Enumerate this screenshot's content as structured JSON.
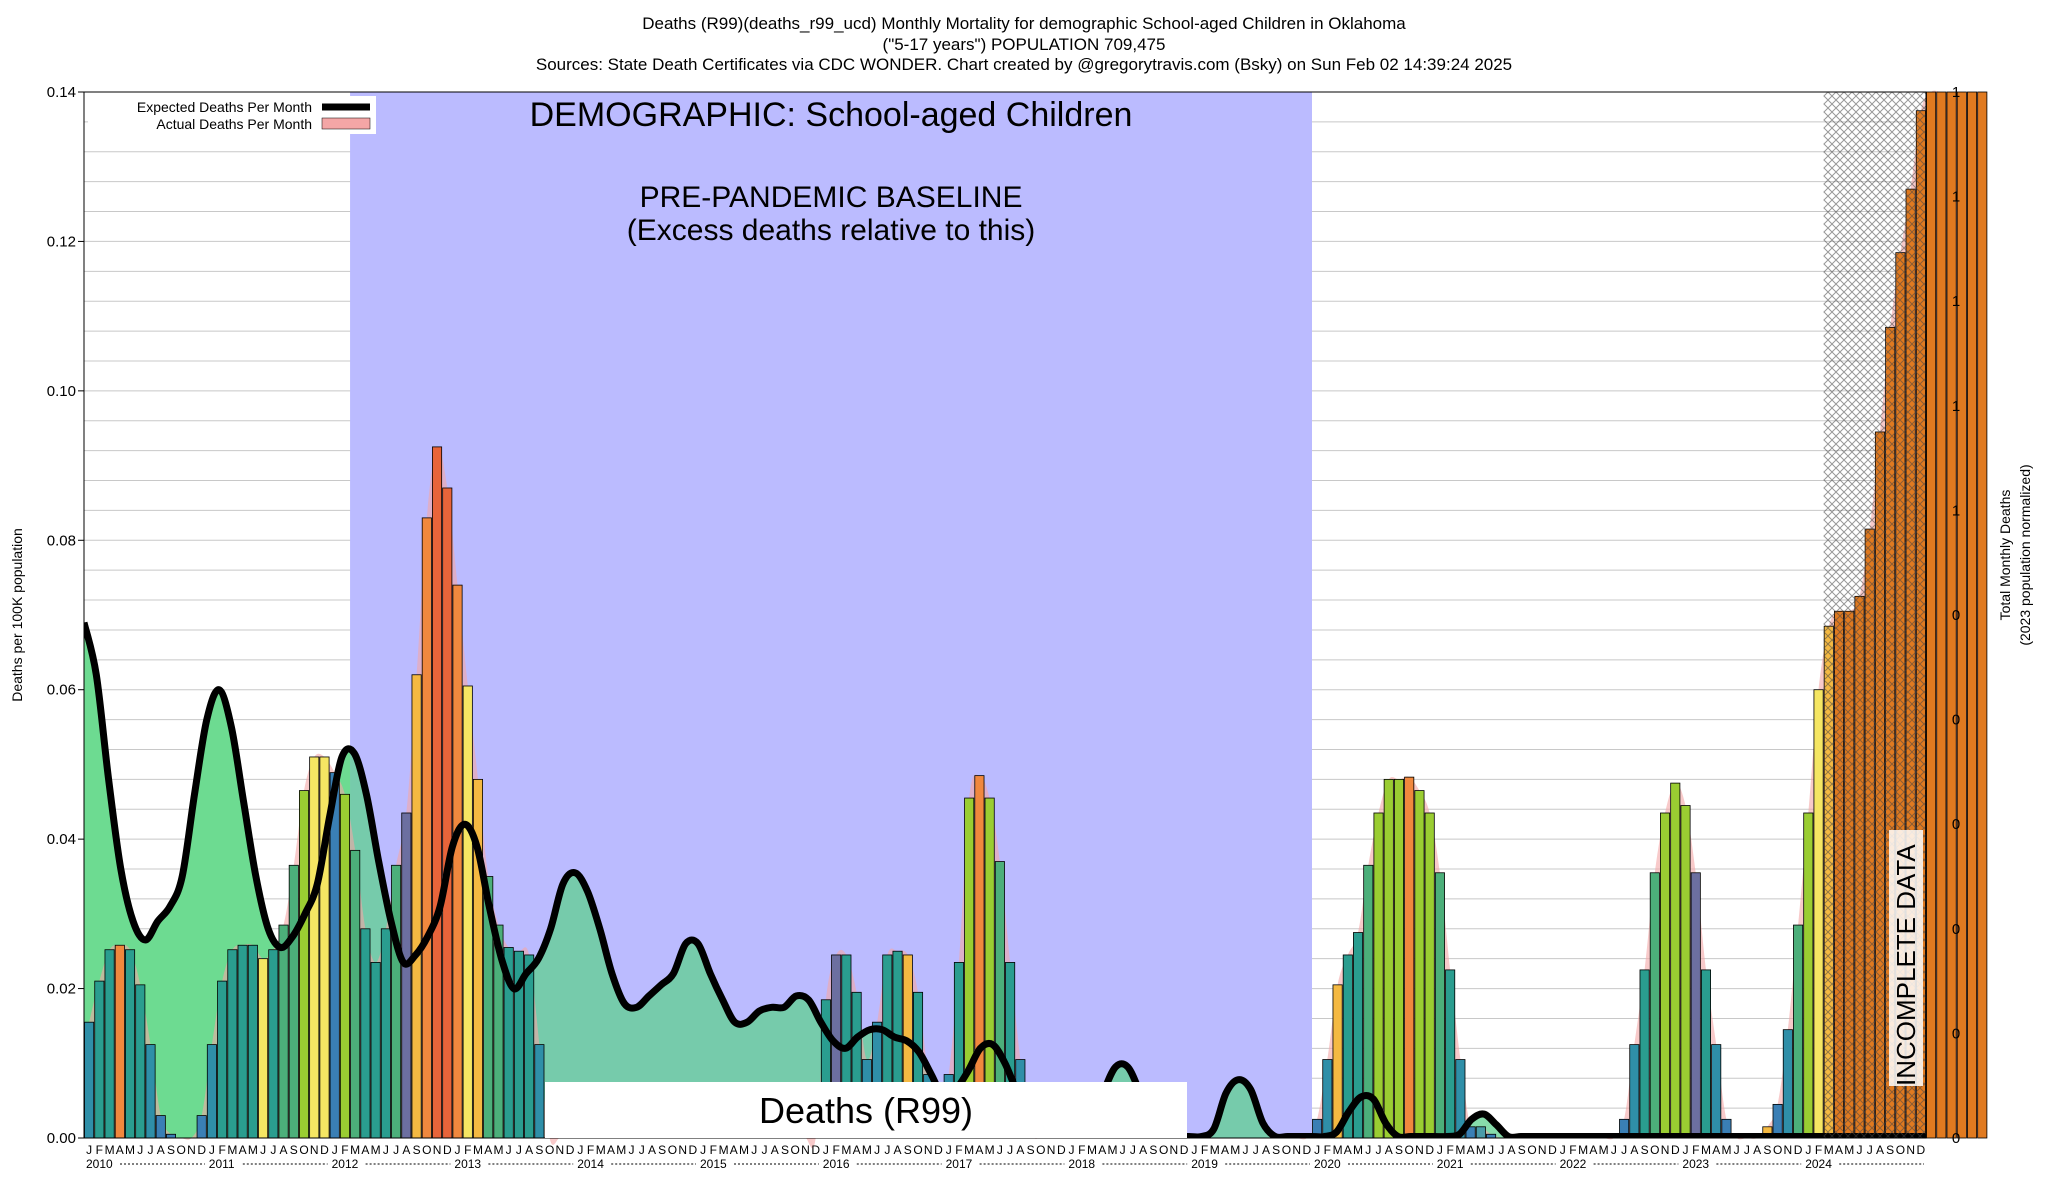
{
  "header": {
    "line1": "Deaths (R99)(deaths_r99_ucd) Monthly Mortality for demographic School-aged Children in Oklahoma",
    "line2": "(\"5-17 years\") POPULATION 709,475",
    "line3": "Sources: State Death Certificates via CDC WONDER.              Chart created by @gregorytravis.com (Bsky) on Sun Feb 02 14:39:24 2025"
  },
  "chart_data": {
    "type": "bar",
    "ylabel": "Deaths per 100K population",
    "y2label_line1": "Total Monthly Deaths",
    "y2label_line2": "(2023 population normalized)",
    "ylim": [
      0,
      0.14
    ],
    "yticks": [
      "0.00",
      "0.02",
      "0.04",
      "0.06",
      "0.08",
      "0.10",
      "0.12",
      "0.14"
    ],
    "y2ticks": [
      "0",
      "0",
      "0",
      "0",
      "0",
      "0",
      "1",
      "1",
      "1",
      "1",
      "1"
    ],
    "grid": true,
    "legend_position": "top-left",
    "legend": {
      "expected": "Expected Deaths Per Month",
      "actual": "Actual Deaths Per Month"
    },
    "month_letters": [
      "J",
      "F",
      "M",
      "A",
      "M",
      "J",
      "J",
      "A",
      "S",
      "O",
      "N",
      "D"
    ],
    "years": [
      "2010",
      "2011",
      "2012",
      "2013",
      "2014",
      "2015",
      "2016",
      "2017",
      "2018",
      "2019",
      "2020",
      "2021",
      "2022",
      "2023",
      "2024"
    ],
    "start": "2010-01",
    "actual": [
      0.0155,
      0.021,
      0.0252,
      0.0258,
      0.0252,
      0.0205,
      0.0125,
      0.003,
      0.0005,
      0,
      0,
      0.003,
      0.0125,
      0.021,
      0.0252,
      0.0258,
      0.0258,
      0.024,
      0.0252,
      0.0285,
      0.0365,
      0.0465,
      0.051,
      0.051,
      0.0489,
      0.046,
      0.0385,
      0.028,
      0.0235,
      0.028,
      0.0365,
      0.0435,
      0.062,
      0.083,
      0.0925,
      0.087,
      0.074,
      0.0605,
      0.048,
      0.035,
      0.0285,
      0.0255,
      0.025,
      0.0245,
      0.0125,
      0,
      0,
      0,
      0,
      0,
      0,
      0,
      0,
      0,
      0,
      0,
      0,
      0,
      0,
      0,
      0,
      0,
      0,
      0,
      0,
      0,
      0,
      0,
      0,
      0,
      0,
      0,
      0.0185,
      0.0245,
      0.0245,
      0.0195,
      0.0105,
      0.0155,
      0.0245,
      0.025,
      0.0245,
      0.0195,
      0.0085,
      0.0015,
      0.0085,
      0.0235,
      0.0455,
      0.0485,
      0.0455,
      0.037,
      0.0235,
      0.0105,
      0.001,
      0,
      0,
      0,
      0,
      0,
      0,
      0,
      0,
      0,
      0,
      0,
      0,
      0,
      0,
      0,
      0,
      0,
      0,
      0,
      0,
      0,
      0,
      0,
      0,
      0,
      0,
      0,
      0.0025,
      0.0105,
      0.0205,
      0.0245,
      0.0275,
      0.0365,
      0.0435,
      0.048,
      0.048,
      0.0483,
      0.0465,
      0.0435,
      0.0355,
      0.0225,
      0.0105,
      0.0015,
      0.0015,
      0.0005,
      0,
      0,
      0,
      0,
      0,
      0,
      0,
      0,
      0,
      0,
      0,
      0,
      0.0025,
      0.0125,
      0.0225,
      0.0355,
      0.0435,
      0.0475,
      0.0445,
      0.0355,
      0.0225,
      0.0125,
      0.0025,
      0,
      0,
      0,
      0.0015,
      0.0045,
      0.0145,
      0.0285,
      0.0435,
      0.06,
      0.0685,
      0.0705,
      0.0705,
      0.0725,
      0.0815,
      0.0945,
      0.1085,
      0.1185,
      0.127,
      0.1375,
      0.14,
      0.14,
      0.14,
      0.14,
      0.14,
      0.14
    ],
    "expected": [
      [
        2010.0,
        0.069
      ],
      [
        2010.1,
        0.062
      ],
      [
        2010.2,
        0.048
      ],
      [
        2010.3,
        0.036
      ],
      [
        2010.4,
        0.029
      ],
      [
        2010.5,
        0.0265
      ],
      [
        2010.6,
        0.029
      ],
      [
        2010.7,
        0.031
      ],
      [
        2010.8,
        0.035
      ],
      [
        2010.9,
        0.046
      ],
      [
        2011.0,
        0.056
      ],
      [
        2011.1,
        0.06
      ],
      [
        2011.2,
        0.055
      ],
      [
        2011.3,
        0.045
      ],
      [
        2011.4,
        0.035
      ],
      [
        2011.5,
        0.028
      ],
      [
        2011.6,
        0.0255
      ],
      [
        2011.7,
        0.027
      ],
      [
        2011.8,
        0.03
      ],
      [
        2011.9,
        0.034
      ],
      [
        2012.0,
        0.043
      ],
      [
        2012.1,
        0.051
      ],
      [
        2012.2,
        0.0515
      ],
      [
        2012.3,
        0.046
      ],
      [
        2012.4,
        0.037
      ],
      [
        2012.5,
        0.029
      ],
      [
        2012.6,
        0.0235
      ],
      [
        2012.7,
        0.0245
      ],
      [
        2012.8,
        0.027
      ],
      [
        2012.9,
        0.031
      ],
      [
        2013.0,
        0.039
      ],
      [
        2013.1,
        0.042
      ],
      [
        2013.2,
        0.039
      ],
      [
        2013.3,
        0.031
      ],
      [
        2013.4,
        0.024
      ],
      [
        2013.5,
        0.02
      ],
      [
        2013.6,
        0.022
      ],
      [
        2013.7,
        0.024
      ],
      [
        2013.8,
        0.028
      ],
      [
        2013.9,
        0.034
      ],
      [
        2014.0,
        0.0355
      ],
      [
        2014.1,
        0.033
      ],
      [
        2014.2,
        0.028
      ],
      [
        2014.3,
        0.022
      ],
      [
        2014.4,
        0.018
      ],
      [
        2014.5,
        0.0175
      ],
      [
        2014.6,
        0.019
      ],
      [
        2014.7,
        0.0205
      ],
      [
        2014.8,
        0.022
      ],
      [
        2014.9,
        0.026
      ],
      [
        2015.0,
        0.026
      ],
      [
        2015.1,
        0.022
      ],
      [
        2015.2,
        0.0185
      ],
      [
        2015.3,
        0.0155
      ],
      [
        2015.4,
        0.0155
      ],
      [
        2015.5,
        0.017
      ],
      [
        2015.6,
        0.0175
      ],
      [
        2015.7,
        0.0175
      ],
      [
        2015.8,
        0.019
      ],
      [
        2015.9,
        0.0185
      ],
      [
        2016.0,
        0.0155
      ],
      [
        2016.1,
        0.013
      ],
      [
        2016.2,
        0.012
      ],
      [
        2016.3,
        0.0135
      ],
      [
        2016.4,
        0.0145
      ],
      [
        2016.5,
        0.0145
      ],
      [
        2016.6,
        0.0135
      ],
      [
        2016.7,
        0.013
      ],
      [
        2016.8,
        0.0115
      ],
      [
        2016.9,
        0.0085
      ],
      [
        2017.0,
        0.0055
      ],
      [
        2017.1,
        0.0065
      ],
      [
        2017.2,
        0.009
      ],
      [
        2017.3,
        0.012
      ],
      [
        2017.4,
        0.0125
      ],
      [
        2017.5,
        0.01
      ],
      [
        2017.6,
        0.006
      ],
      [
        2017.7,
        0.002
      ],
      [
        2017.8,
        0.0002
      ],
      [
        2017.9,
        0.0002
      ],
      [
        2018.0,
        0.0002
      ],
      [
        2018.1,
        0.0002
      ],
      [
        2018.2,
        0.0012
      ],
      [
        2018.3,
        0.006
      ],
      [
        2018.4,
        0.0095
      ],
      [
        2018.5,
        0.0095
      ],
      [
        2018.6,
        0.006
      ],
      [
        2018.7,
        0.0015
      ],
      [
        2018.8,
        0.0002
      ],
      [
        2018.9,
        0.0002
      ],
      [
        2019.0,
        0.0002
      ],
      [
        2019.1,
        0.0002
      ],
      [
        2019.2,
        0.0012
      ],
      [
        2019.3,
        0.006
      ],
      [
        2019.4,
        0.0078
      ],
      [
        2019.5,
        0.0065
      ],
      [
        2019.6,
        0.002
      ],
      [
        2019.7,
        0.0002
      ],
      [
        2019.8,
        0.0002
      ],
      [
        2019.9,
        0.0002
      ],
      [
        2020.0,
        0.0002
      ],
      [
        2020.1,
        0.0002
      ],
      [
        2020.2,
        0.0008
      ],
      [
        2020.3,
        0.0035
      ],
      [
        2020.4,
        0.0055
      ],
      [
        2020.5,
        0.0052
      ],
      [
        2020.6,
        0.002
      ],
      [
        2020.7,
        0.0002
      ],
      [
        2020.8,
        0.0002
      ],
      [
        2020.9,
        0.0002
      ],
      [
        2021.0,
        0.0002
      ],
      [
        2021.1,
        0.0002
      ],
      [
        2021.2,
        0.0005
      ],
      [
        2021.3,
        0.0025
      ],
      [
        2021.4,
        0.0032
      ],
      [
        2021.5,
        0.0018
      ],
      [
        2021.6,
        0.0002
      ],
      [
        2021.7,
        0.0002
      ],
      [
        2021.8,
        0.0002
      ],
      [
        2021.9,
        0.0002
      ],
      [
        2022.0,
        0.0002
      ],
      [
        2022.1,
        0.0002
      ],
      [
        2022.2,
        0.0002
      ],
      [
        2022.3,
        0.0002
      ],
      [
        2022.4,
        0.0002
      ],
      [
        2022.5,
        0.0002
      ],
      [
        2022.6,
        0.0002
      ],
      [
        2022.7,
        0.0002
      ],
      [
        2022.8,
        0.0002
      ],
      [
        2022.9,
        0.0002
      ],
      [
        2023.0,
        0.0002
      ],
      [
        2023.1,
        0.0002
      ],
      [
        2023.2,
        0.0002
      ],
      [
        2023.3,
        0.0002
      ],
      [
        2023.4,
        0.0002
      ],
      [
        2023.5,
        0.0002
      ],
      [
        2023.6,
        0.0002
      ],
      [
        2023.7,
        0.0002
      ],
      [
        2023.8,
        0.0002
      ],
      [
        2023.9,
        0.0002
      ],
      [
        2024.0,
        0.0002
      ],
      [
        2024.1,
        0.0002
      ],
      [
        2024.2,
        0.0002
      ],
      [
        2024.3,
        0.0002
      ],
      [
        2024.4,
        0.0002
      ],
      [
        2024.5,
        0.0002
      ],
      [
        2024.6,
        0.0002
      ],
      [
        2024.7,
        0.0002
      ],
      [
        2024.8,
        0.0002
      ],
      [
        2024.9,
        0.0002
      ],
      [
        2025.0,
        0.0002
      ]
    ],
    "baseline_band": {
      "start": "2012-03",
      "end": "2019-12",
      "title": "PRE-PANDEMIC BASELINE",
      "subtitle": "(Excess deaths relative to this)"
    },
    "demographic_label": "DEMOGRAPHIC: School-aged Children",
    "cause_label": "Deaths (R99)",
    "incomplete": {
      "start": "2024-04",
      "label": "INCOMPLETE DATA"
    },
    "colors": {
      "baseline": "#bbbbff",
      "excess": "#98fb98",
      "expected_line": "#000000",
      "actual_fill": "#f4a6a6",
      "hatch": "#444444",
      "grid": "#c8c8c8",
      "incomplete_bar": "#e07a20"
    }
  }
}
